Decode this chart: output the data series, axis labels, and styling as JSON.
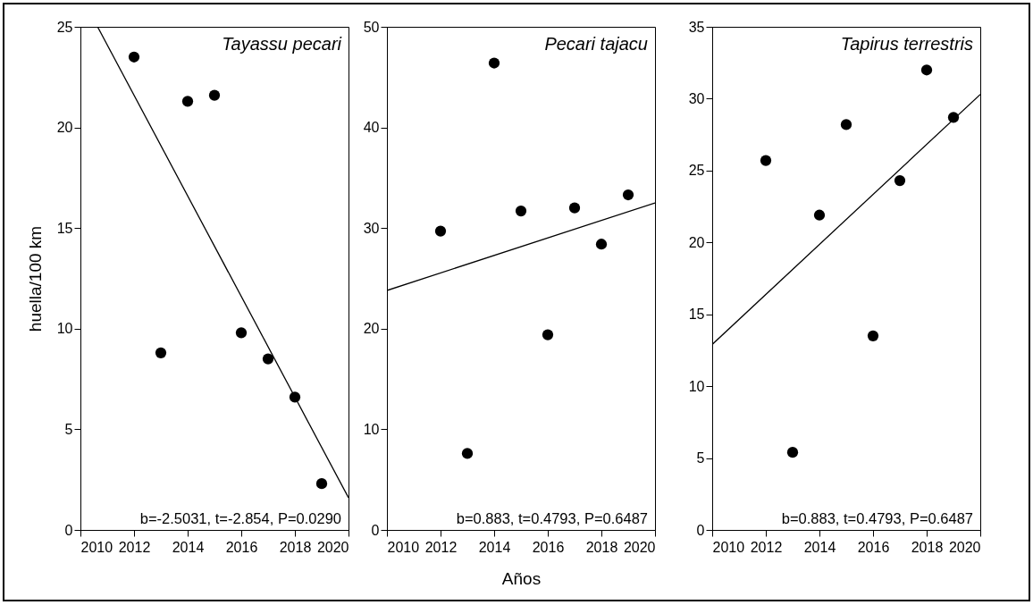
{
  "chart_data": [
    {
      "type": "scatter",
      "ylabel": "huella/100 km",
      "annotations": [
        "Tayassu pecari",
        "b=-2.5031, t=-2.854, P=0.0290"
      ],
      "xlim": [
        2010,
        2020
      ],
      "xticks": [
        2010,
        2012,
        2014,
        2016,
        2018,
        2020
      ],
      "ylim": [
        0,
        25
      ],
      "yticks": [
        0,
        5,
        10,
        15,
        20,
        25
      ],
      "series": [
        {
          "marker": "circle",
          "color": "#000000",
          "x": [
            2012,
            2013,
            2014,
            2015,
            2016,
            2017,
            2018,
            2019
          ],
          "values": [
            23.5,
            8.8,
            21.3,
            21.6,
            9.8,
            8.5,
            6.6,
            2.3
          ]
        },
        {
          "type": "line",
          "color": "#000000",
          "x": [
            2010.64,
            2020
          ],
          "values": [
            25,
            1.6
          ]
        }
      ]
    },
    {
      "type": "scatter",
      "xlabel": "Años",
      "annotations": [
        "Pecari tajacu",
        "b=0.883, t=0.4793, P=0.6487"
      ],
      "xlim": [
        2010,
        2020
      ],
      "xticks": [
        2010,
        2012,
        2014,
        2016,
        2018,
        2020
      ],
      "ylim": [
        0,
        50
      ],
      "yticks": [
        0,
        10,
        20,
        30,
        40,
        50
      ],
      "series": [
        {
          "marker": "circle",
          "color": "#000000",
          "x": [
            2012,
            2013,
            2014,
            2015,
            2016,
            2017,
            2018,
            2019
          ],
          "values": [
            29.7,
            7.6,
            46.4,
            31.7,
            19.4,
            32.0,
            28.4,
            33.3
          ]
        },
        {
          "type": "line",
          "color": "#000000",
          "x": [
            2010,
            2020
          ],
          "values": [
            23.8,
            32.5
          ]
        }
      ]
    },
    {
      "type": "scatter",
      "annotations": [
        "Tapirus terrestris",
        "b=0.883, t=0.4793, P=0.6487"
      ],
      "xlim": [
        2010,
        2020
      ],
      "xticks": [
        2010,
        2012,
        2014,
        2016,
        2018,
        2020
      ],
      "ylim": [
        0,
        35
      ],
      "yticks": [
        0,
        5,
        10,
        15,
        20,
        25,
        30,
        35
      ],
      "series": [
        {
          "marker": "circle",
          "color": "#000000",
          "x": [
            2012,
            2013,
            2014,
            2015,
            2016,
            2017,
            2018,
            2019
          ],
          "values": [
            25.7,
            5.4,
            21.9,
            28.2,
            13.5,
            24.3,
            32.0,
            28.7
          ]
        },
        {
          "type": "line",
          "color": "#000000",
          "x": [
            2010,
            2020
          ],
          "values": [
            12.9,
            30.3
          ]
        }
      ]
    }
  ]
}
